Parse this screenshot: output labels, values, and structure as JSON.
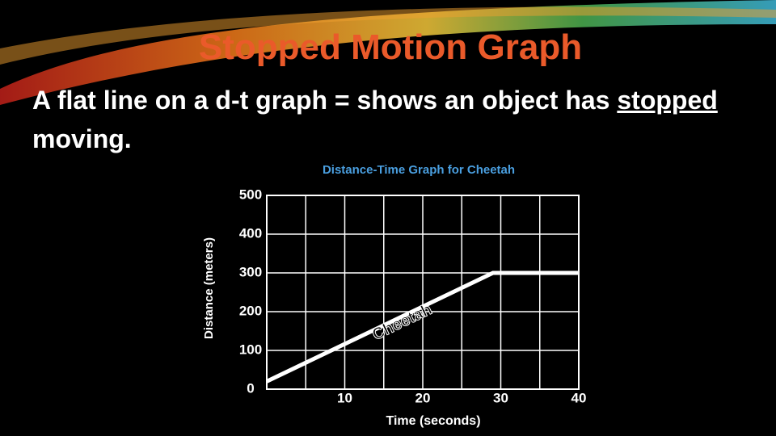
{
  "slide": {
    "title": "Stopped Motion Graph",
    "body": {
      "before": "A flat line on a d-t graph = shows an object has ",
      "underlined": "stopped",
      "after": " moving."
    }
  },
  "chart_data": {
    "type": "line",
    "title": "Distance-Time Graph for Cheetah",
    "xlabel": "Time (seconds)",
    "ylabel": "Distance (meters)",
    "x": [
      0,
      29,
      40
    ],
    "series": [
      {
        "name": "Cheetah",
        "color": "#ffffff",
        "values": [
          20,
          300,
          300
        ]
      }
    ],
    "xlim": [
      0,
      40
    ],
    "ylim": [
      0,
      500
    ],
    "xticks": [
      10,
      20,
      30,
      40
    ],
    "yticks": [
      0,
      100,
      200,
      300,
      400,
      500
    ],
    "xgrid": [
      0,
      5,
      10,
      15,
      20,
      25,
      30,
      35,
      40
    ],
    "grid": true
  }
}
